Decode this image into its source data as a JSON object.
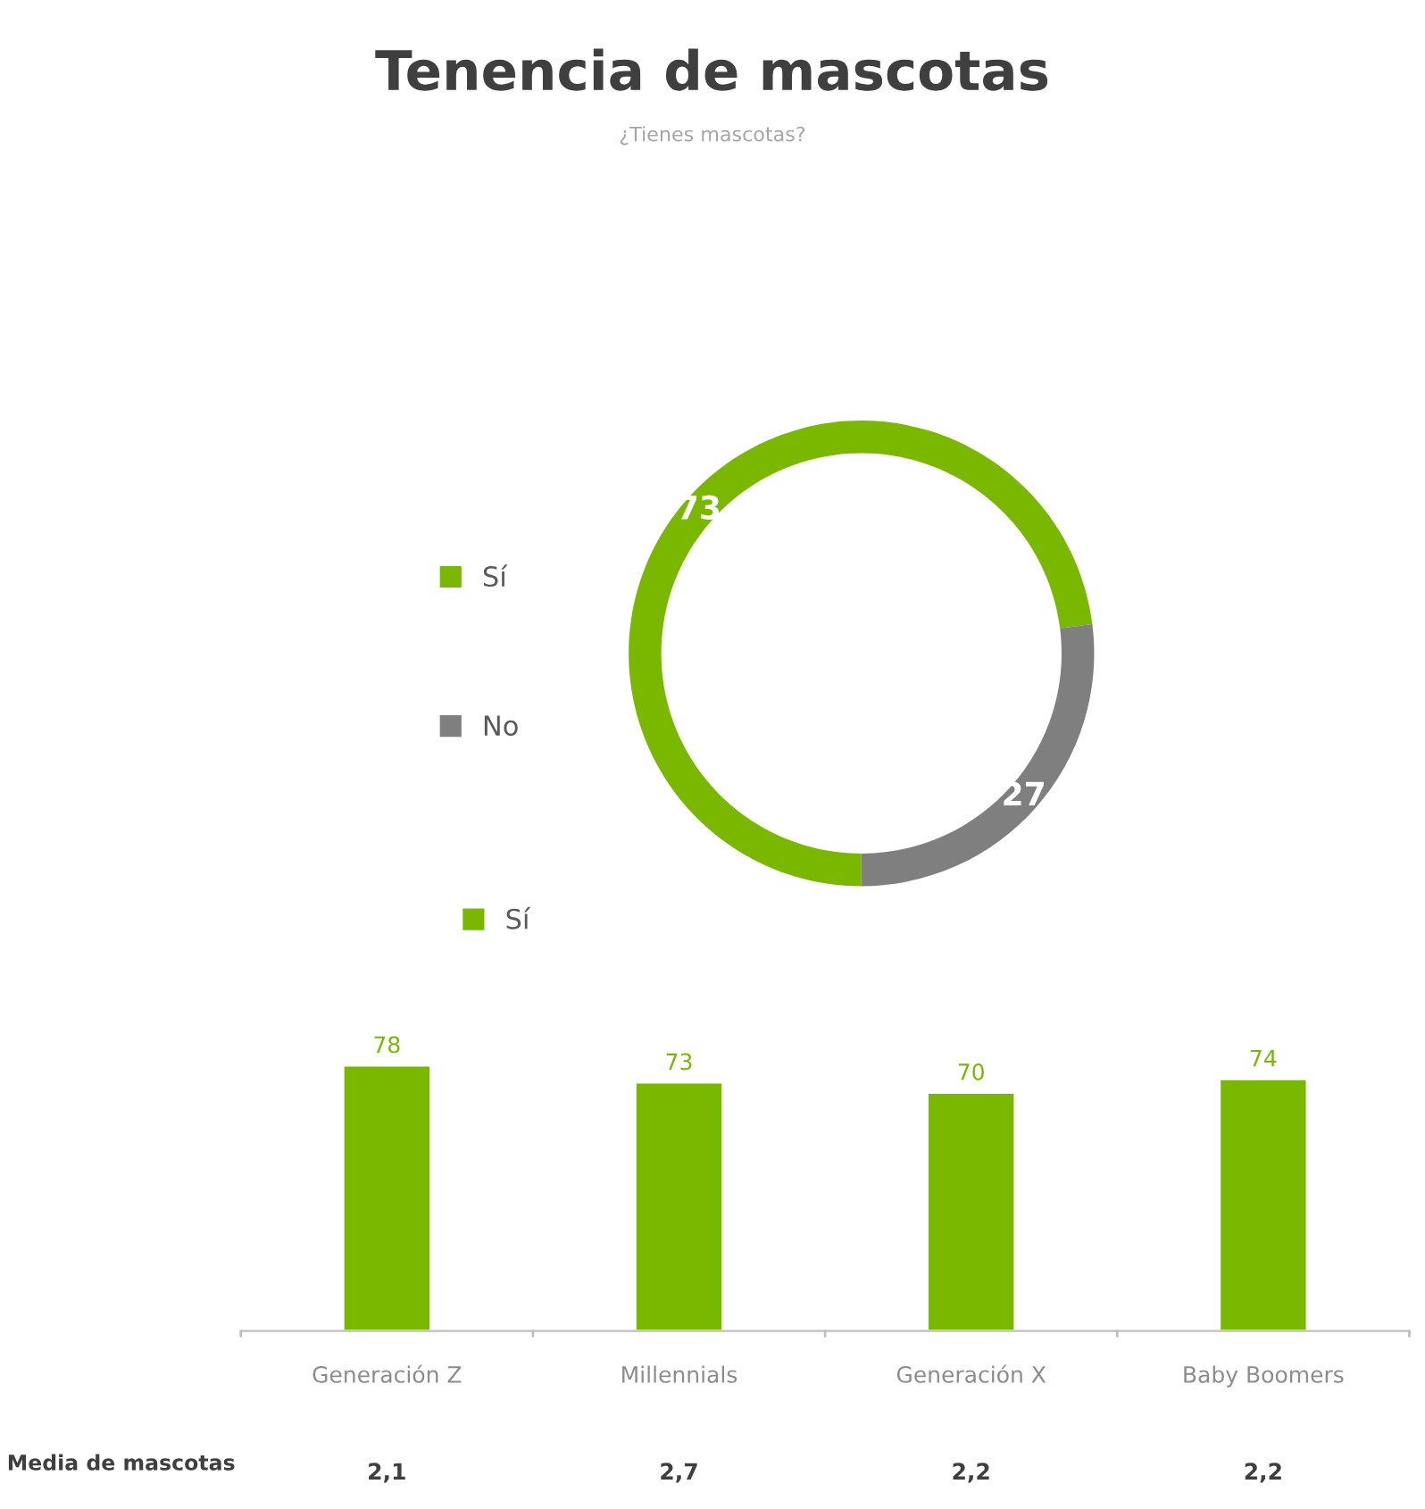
{
  "chart_data": [
    {
      "type": "donut",
      "title": "Tenencia de mascotas",
      "subtitle": "¿Tienes mascotas?",
      "categories": [
        "Sí",
        "No"
      ],
      "values": [
        73,
        27
      ],
      "colors": [
        "#7ab800",
        "#7f7f7f"
      ],
      "data_labels": true,
      "legend": "left"
    },
    {
      "type": "bar",
      "categories": [
        "Generación Z",
        "Millennials",
        "Generación X",
        "Baby Boomers"
      ],
      "series": [
        {
          "name": "Sí",
          "color": "#7ab800",
          "values": [
            78,
            73,
            70,
            74
          ]
        }
      ],
      "data_labels": true,
      "legend": "top left",
      "annotations": [
        "Media de mascotas",
        "2,1",
        "2,7",
        "2,2",
        "2,2"
      ]
    }
  ]
}
